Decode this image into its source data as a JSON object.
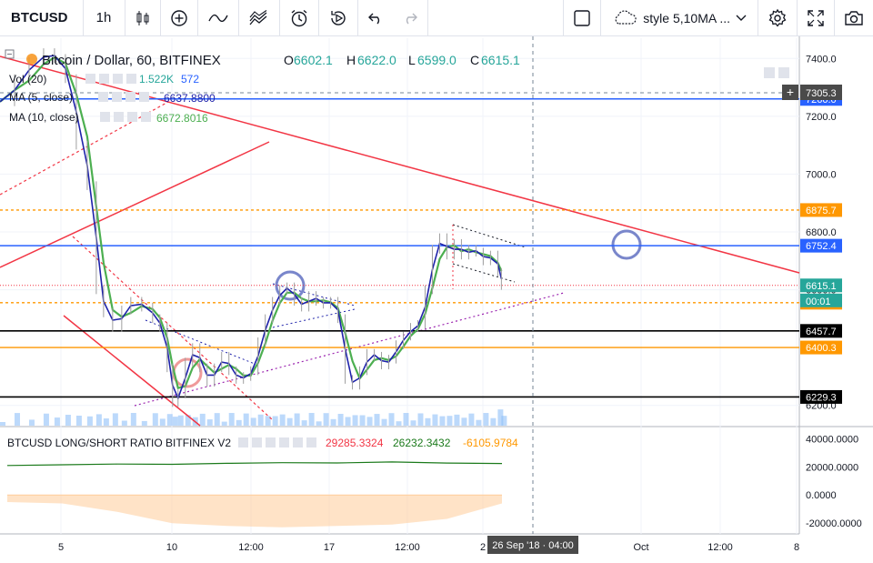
{
  "toolbar": {
    "symbol": "BTCUSD",
    "interval": "1h",
    "style_label": "style 5,10MA ...",
    "icons": [
      "candles-icon",
      "add-indicator-icon",
      "compare-icon",
      "indicators-icon",
      "alert-icon",
      "replay-icon",
      "undo-icon",
      "redo-icon",
      "fullscreen-square-icon",
      "cloud-icon",
      "chevron-down-icon",
      "gear-icon",
      "expand-icon",
      "camera-icon"
    ]
  },
  "legend": {
    "title": "Bitcoin / Dollar, 60, BITFINEX",
    "o_label": "O",
    "o_value": "6602.1",
    "h_label": "H",
    "h_value": "6622.0",
    "l_label": "L",
    "l_value": "6599.0",
    "c_label": "C",
    "c_value": "6615.1",
    "vol_label": "Vol (20)",
    "vol_value1": "1.522K",
    "vol_value2": "572",
    "ma5_label": "MA (5, close)",
    "ma5_value": "6637.8800",
    "ma10_label": "MA (10, close)",
    "ma10_value": "6672.8016"
  },
  "sub_legend": {
    "title": "BTCUSD LONG/SHORT RATIO BITFINEX V2",
    "v1": "29285.3324",
    "v2": "26232.3432",
    "v3": "-6105.9784"
  },
  "crosshair": {
    "x_label": "26 Sep '18 · 04:00",
    "y_label": "7305.3"
  },
  "countdown": "00:01",
  "colors": {
    "up": "#26a69a",
    "down": "#ef5350",
    "ma5": "#1e22aa",
    "ma10": "#4caf50",
    "blue_line": "#2962ff",
    "orange": "#ff9800",
    "red": "#f23645",
    "purple": "#9c27b0",
    "price_tag": "#f23645"
  },
  "chart_data": [
    {
      "type": "line",
      "title": "Bitcoin / Dollar, 60, BITFINEX",
      "ylim": [
        6130,
        7470
      ],
      "y_ticks": [
        "7400.0",
        "7200.0",
        "7000.0",
        "6800.0",
        "6600.0",
        "6400.0",
        "6200.0"
      ],
      "x_ticks": [
        "5",
        "10",
        "12:00",
        "17",
        "12:00",
        "2",
        "Oct",
        "12:00",
        "8"
      ],
      "series": [
        {
          "name": "",
          "points": [
            [
              0,
              7250
            ],
            [
              8,
              7330
            ],
            [
              16,
              7390
            ],
            [
              24,
              7420
            ],
            [
              30,
              7400
            ],
            [
              36,
              7330
            ],
            [
              42,
              7100
            ],
            [
              48,
              6960
            ],
            [
              53,
              6600
            ],
            [
              57,
              6520
            ],
            [
              62,
              6470
            ],
            [
              67,
              6530
            ],
            [
              72,
              6560
            ],
            [
              78,
              6540
            ],
            [
              84,
              6500
            ],
            [
              88,
              6470
            ],
            [
              92,
              6330
            ],
            [
              95,
              6210
            ],
            [
              98,
              6240
            ],
            [
              102,
              6350
            ],
            [
              106,
              6400
            ],
            [
              110,
              6330
            ],
            [
              114,
              6280
            ],
            [
              118,
              6330
            ],
            [
              122,
              6370
            ],
            [
              126,
              6320
            ],
            [
              130,
              6290
            ],
            [
              134,
              6300
            ],
            [
              138,
              6320
            ],
            [
              142,
              6420
            ],
            [
              146,
              6500
            ],
            [
              150,
              6560
            ],
            [
              154,
              6600
            ],
            [
              158,
              6610
            ],
            [
              162,
              6560
            ],
            [
              166,
              6540
            ],
            [
              170,
              6580
            ],
            [
              174,
              6560
            ],
            [
              178,
              6550
            ],
            [
              182,
              6560
            ],
            [
              186,
              6500
            ],
            [
              190,
              6290
            ],
            [
              194,
              6270
            ],
            [
              198,
              6320
            ],
            [
              202,
              6380
            ],
            [
              206,
              6370
            ],
            [
              210,
              6340
            ],
            [
              214,
              6360
            ],
            [
              218,
              6410
            ],
            [
              222,
              6440
            ],
            [
              226,
              6470
            ],
            [
              230,
              6480
            ],
            [
              234,
              6600
            ],
            [
              238,
              6740
            ],
            [
              242,
              6780
            ],
            [
              246,
              6720
            ],
            [
              250,
              6760
            ],
            [
              254,
              6720
            ],
            [
              258,
              6740
            ],
            [
              262,
              6730
            ],
            [
              266,
              6700
            ],
            [
              270,
              6720
            ],
            [
              274,
              6660
            ],
            [
              276,
              6615
            ]
          ]
        }
      ],
      "x_range": [
        0,
        440
      ],
      "levels": [
        {
          "label": "6875.7",
          "value": 6875.7,
          "color": "#ff9800",
          "style": "dotted"
        },
        {
          "label": "6752.4",
          "value": 6752.4,
          "color": "#2962ff",
          "style": "solid"
        },
        {
          "label": "7260.0",
          "value": 7260.0,
          "color": "#2962ff",
          "style": "solid"
        },
        {
          "label": "6555.2",
          "value": 6555.2,
          "color": "#ff9800",
          "style": "dotted"
        },
        {
          "label": "6457.7",
          "value": 6457.7,
          "color": "#000000",
          "style": "solid"
        },
        {
          "label": "6400.3",
          "value": 6400.3,
          "color": "#ff9800",
          "style": "solid"
        },
        {
          "label": "6229.3",
          "value": 6229.3,
          "color": "#000000",
          "style": "solid"
        },
        {
          "label": "6615.1",
          "value": 6615.1,
          "color": "#f23645",
          "style": "current"
        }
      ]
    },
    {
      "type": "area",
      "title": "BTCUSD LONG/SHORT RATIO BITFINEX V2",
      "ylim": [
        -27000,
        48000
      ],
      "y_ticks": [
        "40000.0000",
        "20000.0000",
        "0.0000",
        "-20000.0000"
      ],
      "series": [
        {
          "name": "",
          "values": [
            21000,
            21500,
            22000,
            21800,
            22500,
            23000,
            22800,
            23500,
            22700,
            22400
          ]
        },
        {
          "name": "",
          "values": [
            -5000,
            -6000,
            -12000,
            -20000,
            -22000,
            -23000,
            -22000,
            -21000,
            -17000,
            -6000
          ]
        }
      ]
    }
  ]
}
